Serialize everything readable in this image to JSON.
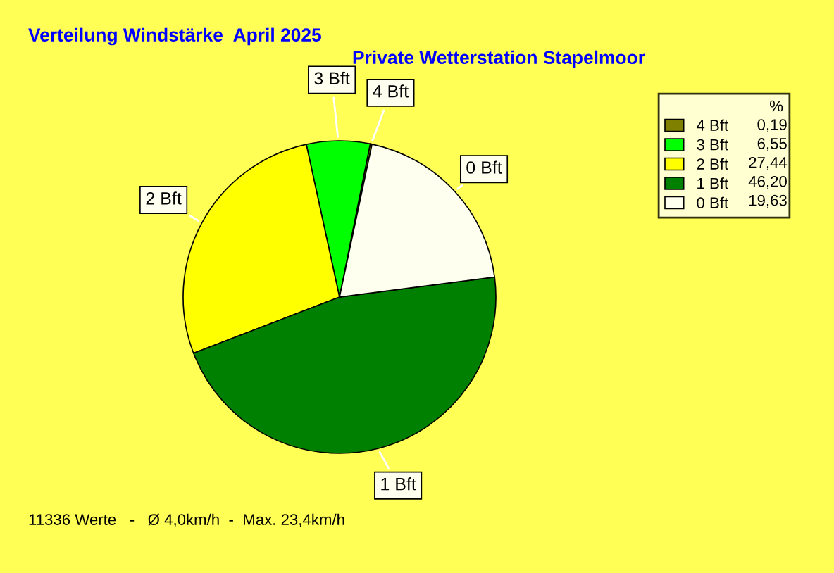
{
  "chart_data": {
    "type": "pie",
    "title": "Verteilung Windstärke  April 2025",
    "subtitle": "Private Wetterstation Stapelmoor",
    "categories": [
      "4 Bft",
      "3 Bft",
      "2 Bft",
      "1 Bft",
      "0 Bft"
    ],
    "values": [
      0.19,
      6.55,
      27.44,
      46.2,
      19.63
    ],
    "value_labels": [
      "0,19",
      "6,55",
      "27,44",
      "46,20",
      "19,63"
    ],
    "colors": [
      "#808000",
      "#00ff00",
      "#ffff00",
      "#008000",
      "#fffff0"
    ],
    "legend": "top right",
    "legend_title": "%",
    "annotations": [
      "11336 Werte   -   Ø 4,0km/h  -  Max. 23,4km/h"
    ]
  }
}
